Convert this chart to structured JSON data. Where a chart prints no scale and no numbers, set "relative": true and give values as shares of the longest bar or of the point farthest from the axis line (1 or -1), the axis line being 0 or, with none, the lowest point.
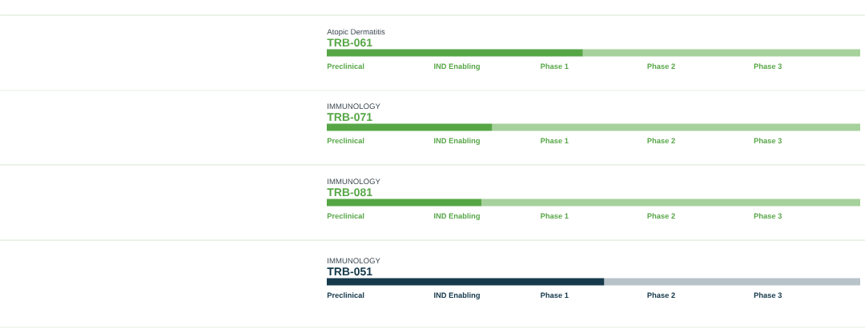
{
  "chart_data": [
    {
      "type": "bar",
      "orientation": "horizontal",
      "stacked": true,
      "relative": true,
      "title": "TRB-061",
      "subtitle": "Atopic Dermatitis",
      "categories": [
        null
      ],
      "series": [
        {
          "color": "#56a646",
          "values": [
            0.48
          ]
        },
        {
          "color": "#a6d19c",
          "values": [
            0.52
          ]
        }
      ],
      "annotations": [
        "Preclinical",
        "IND Enabling",
        "Phase 1",
        "Phase 2",
        "Phase 3"
      ]
    },
    {
      "type": "bar",
      "orientation": "horizontal",
      "stacked": true,
      "relative": true,
      "title": "TRB-071",
      "subtitle": "IMMUNOLOGY",
      "categories": [
        null
      ],
      "series": [
        {
          "color": "#56a646",
          "values": [
            0.31
          ]
        },
        {
          "color": "#a6d19c",
          "values": [
            0.69
          ]
        }
      ],
      "annotations": [
        "Preclinical",
        "IND Enabling",
        "Phase 1",
        "Phase 2",
        "Phase 3"
      ]
    },
    {
      "type": "bar",
      "orientation": "horizontal",
      "stacked": true,
      "relative": true,
      "title": "TRB-081",
      "subtitle": "IMMUNOLOGY",
      "categories": [
        null
      ],
      "series": [
        {
          "color": "#56a646",
          "values": [
            0.29
          ]
        },
        {
          "color": "#a6d19c",
          "values": [
            0.71
          ]
        }
      ],
      "annotations": [
        "Preclinical",
        "IND Enabling",
        "Phase 1",
        "Phase 2",
        "Phase 3"
      ]
    },
    {
      "type": "bar",
      "orientation": "horizontal",
      "stacked": true,
      "relative": true,
      "title": "TRB-051",
      "subtitle": "IMMUNOLOGY",
      "categories": [
        null
      ],
      "series": [
        {
          "color": "#163a4c",
          "values": [
            0.52
          ]
        },
        {
          "color": "#b8c3c9",
          "values": [
            0.48
          ]
        }
      ],
      "annotations": [
        "Preclinical",
        "IND Enabling",
        "Phase 1",
        "Phase 2",
        "Phase 3"
      ]
    }
  ]
}
